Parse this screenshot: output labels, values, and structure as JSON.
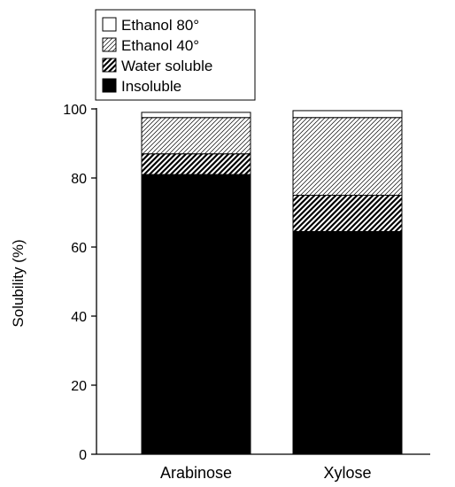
{
  "chart_data": {
    "type": "bar",
    "stacked": true,
    "categories": [
      "Arabinose",
      "Xylose"
    ],
    "ylabel": "Solubility (%)",
    "xlabel": "",
    "ylim": [
      0,
      100
    ],
    "yticks": [
      0,
      20,
      40,
      60,
      80,
      100
    ],
    "grid": false,
    "legend_position": "top-left",
    "series": [
      {
        "name": "Insoluble",
        "values": [
          81,
          64.5
        ],
        "pattern": "solid"
      },
      {
        "name": "Water soluble",
        "values": [
          6,
          10.5
        ],
        "pattern": "dense-hatch"
      },
      {
        "name": "Ethanol 40°",
        "values": [
          10.5,
          22.5
        ],
        "pattern": "light-hatch"
      },
      {
        "name": "Ethanol 80°",
        "values": [
          1.5,
          2
        ],
        "pattern": "blank"
      }
    ],
    "legend_order": [
      "Ethanol 80°",
      "Ethanol 40°",
      "Water soluble",
      "Insoluble"
    ]
  }
}
